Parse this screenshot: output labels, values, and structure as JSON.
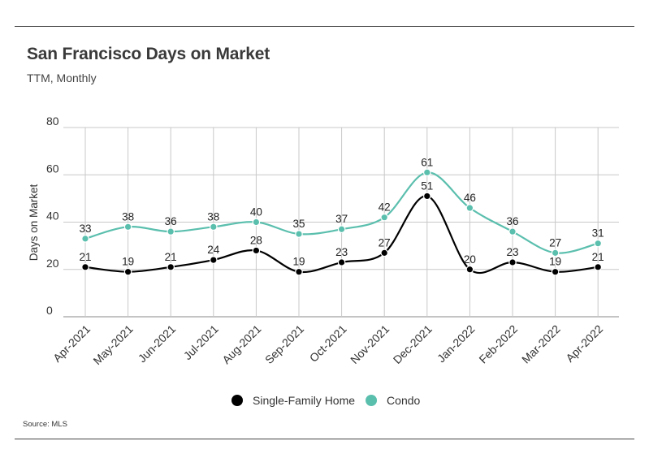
{
  "header": {
    "title": "San Francisco Days on Market",
    "subtitle": "TTM, Monthly"
  },
  "footer": {
    "source": "Source:  MLS"
  },
  "chart_data": {
    "type": "line",
    "title": "San Francisco Days on Market",
    "subtitle": "TTM, Monthly",
    "xlabel": "",
    "ylabel": "Days on Market",
    "ylim": [
      0,
      80
    ],
    "yticks": [
      0,
      20,
      40,
      60,
      80
    ],
    "grid": true,
    "legend": "bottom-center",
    "categories": [
      "Apr-2021",
      "May-2021",
      "Jun-2021",
      "Jul-2021",
      "Aug-2021",
      "Sep-2021",
      "Oct-2021",
      "Nov-2021",
      "Dec-2021",
      "Jan-2022",
      "Feb-2022",
      "Mar-2022",
      "Apr-2022"
    ],
    "series": [
      {
        "name": "Single-Family Home",
        "color": "#000000",
        "values": [
          21,
          19,
          21,
          24,
          28,
          19,
          23,
          27,
          51,
          20,
          23,
          19,
          21
        ]
      },
      {
        "name": "Condo",
        "color": "#5bbfae",
        "values": [
          33,
          38,
          36,
          38,
          40,
          35,
          37,
          42,
          61,
          46,
          36,
          27,
          31
        ]
      }
    ]
  }
}
